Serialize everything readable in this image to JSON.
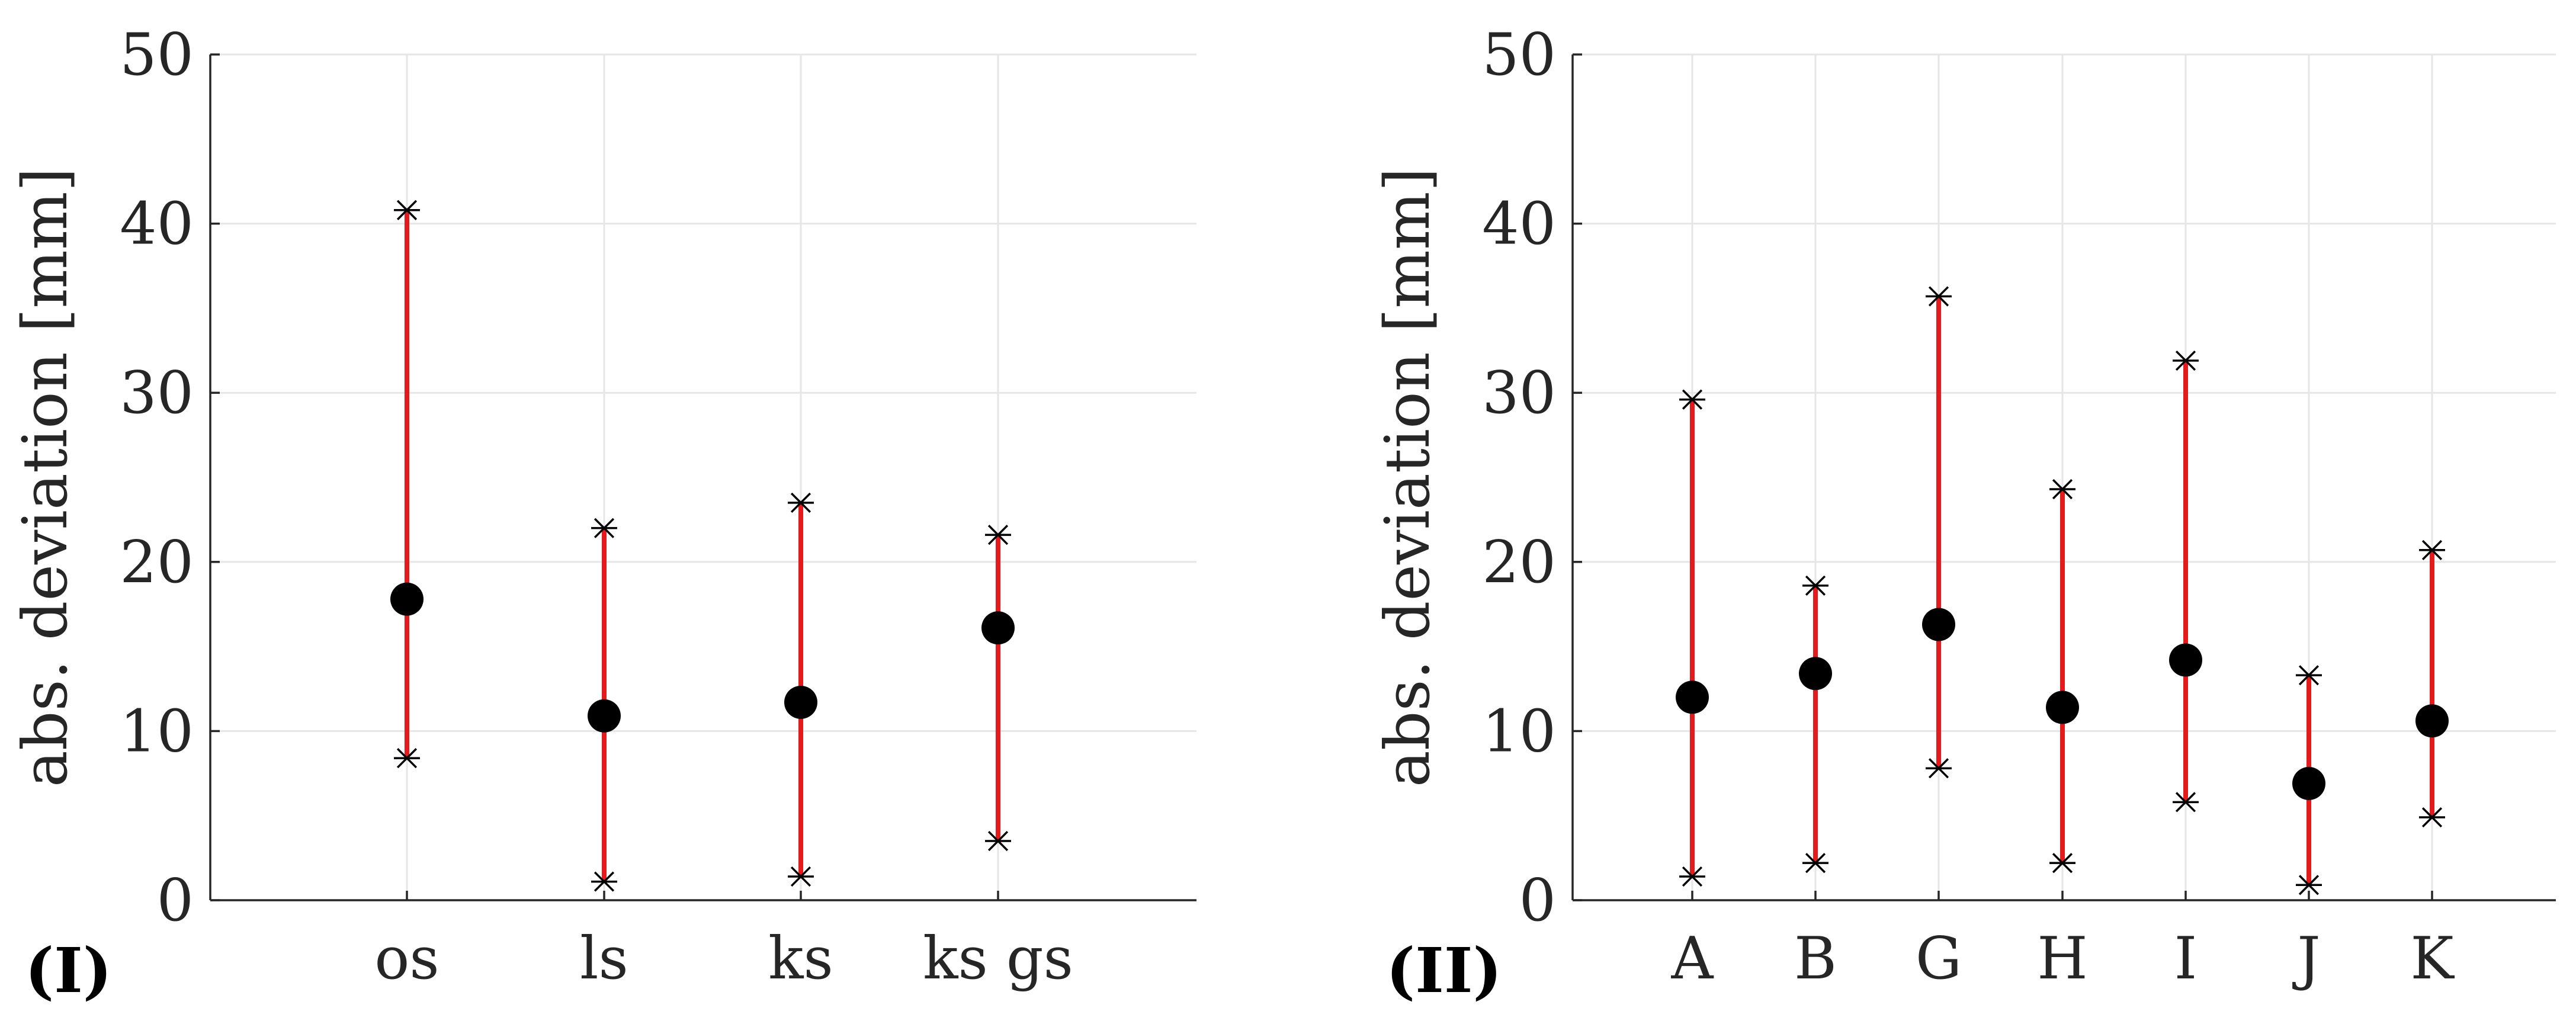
{
  "chart_data": [
    {
      "type": "errorbar",
      "panel_label": "(I)",
      "ylabel": "abs. deviation [mm]",
      "ylim": [
        0,
        50
      ],
      "yticks": [
        0,
        10,
        20,
        30,
        40,
        50
      ],
      "grid": true,
      "categories": [
        "os",
        "ls",
        "ks",
        "ks gs"
      ],
      "mean": [
        17.8,
        10.9,
        11.7,
        16.1
      ],
      "min": [
        8.4,
        1.1,
        1.4,
        3.5
      ],
      "max": [
        40.8,
        22.0,
        23.5,
        21.6
      ],
      "colors": {
        "range": "#e41a1c",
        "mean": "#000000",
        "extreme": "#000000"
      }
    },
    {
      "type": "errorbar",
      "panel_label": "(II)",
      "ylabel": "abs. deviation [mm]",
      "ylim": [
        0,
        50
      ],
      "yticks": [
        0,
        10,
        20,
        30,
        40,
        50
      ],
      "grid": true,
      "categories": [
        "A",
        "B",
        "G",
        "H",
        "I",
        "J",
        "K"
      ],
      "mean": [
        12.0,
        13.4,
        16.3,
        11.4,
        14.2,
        6.9,
        10.6
      ],
      "min": [
        1.4,
        2.2,
        7.8,
        2.2,
        5.8,
        0.9,
        4.9
      ],
      "max": [
        29.6,
        18.6,
        35.7,
        24.3,
        31.9,
        13.3,
        20.7
      ],
      "colors": {
        "range": "#e41a1c",
        "mean": "#000000",
        "extreme": "#000000"
      }
    }
  ]
}
